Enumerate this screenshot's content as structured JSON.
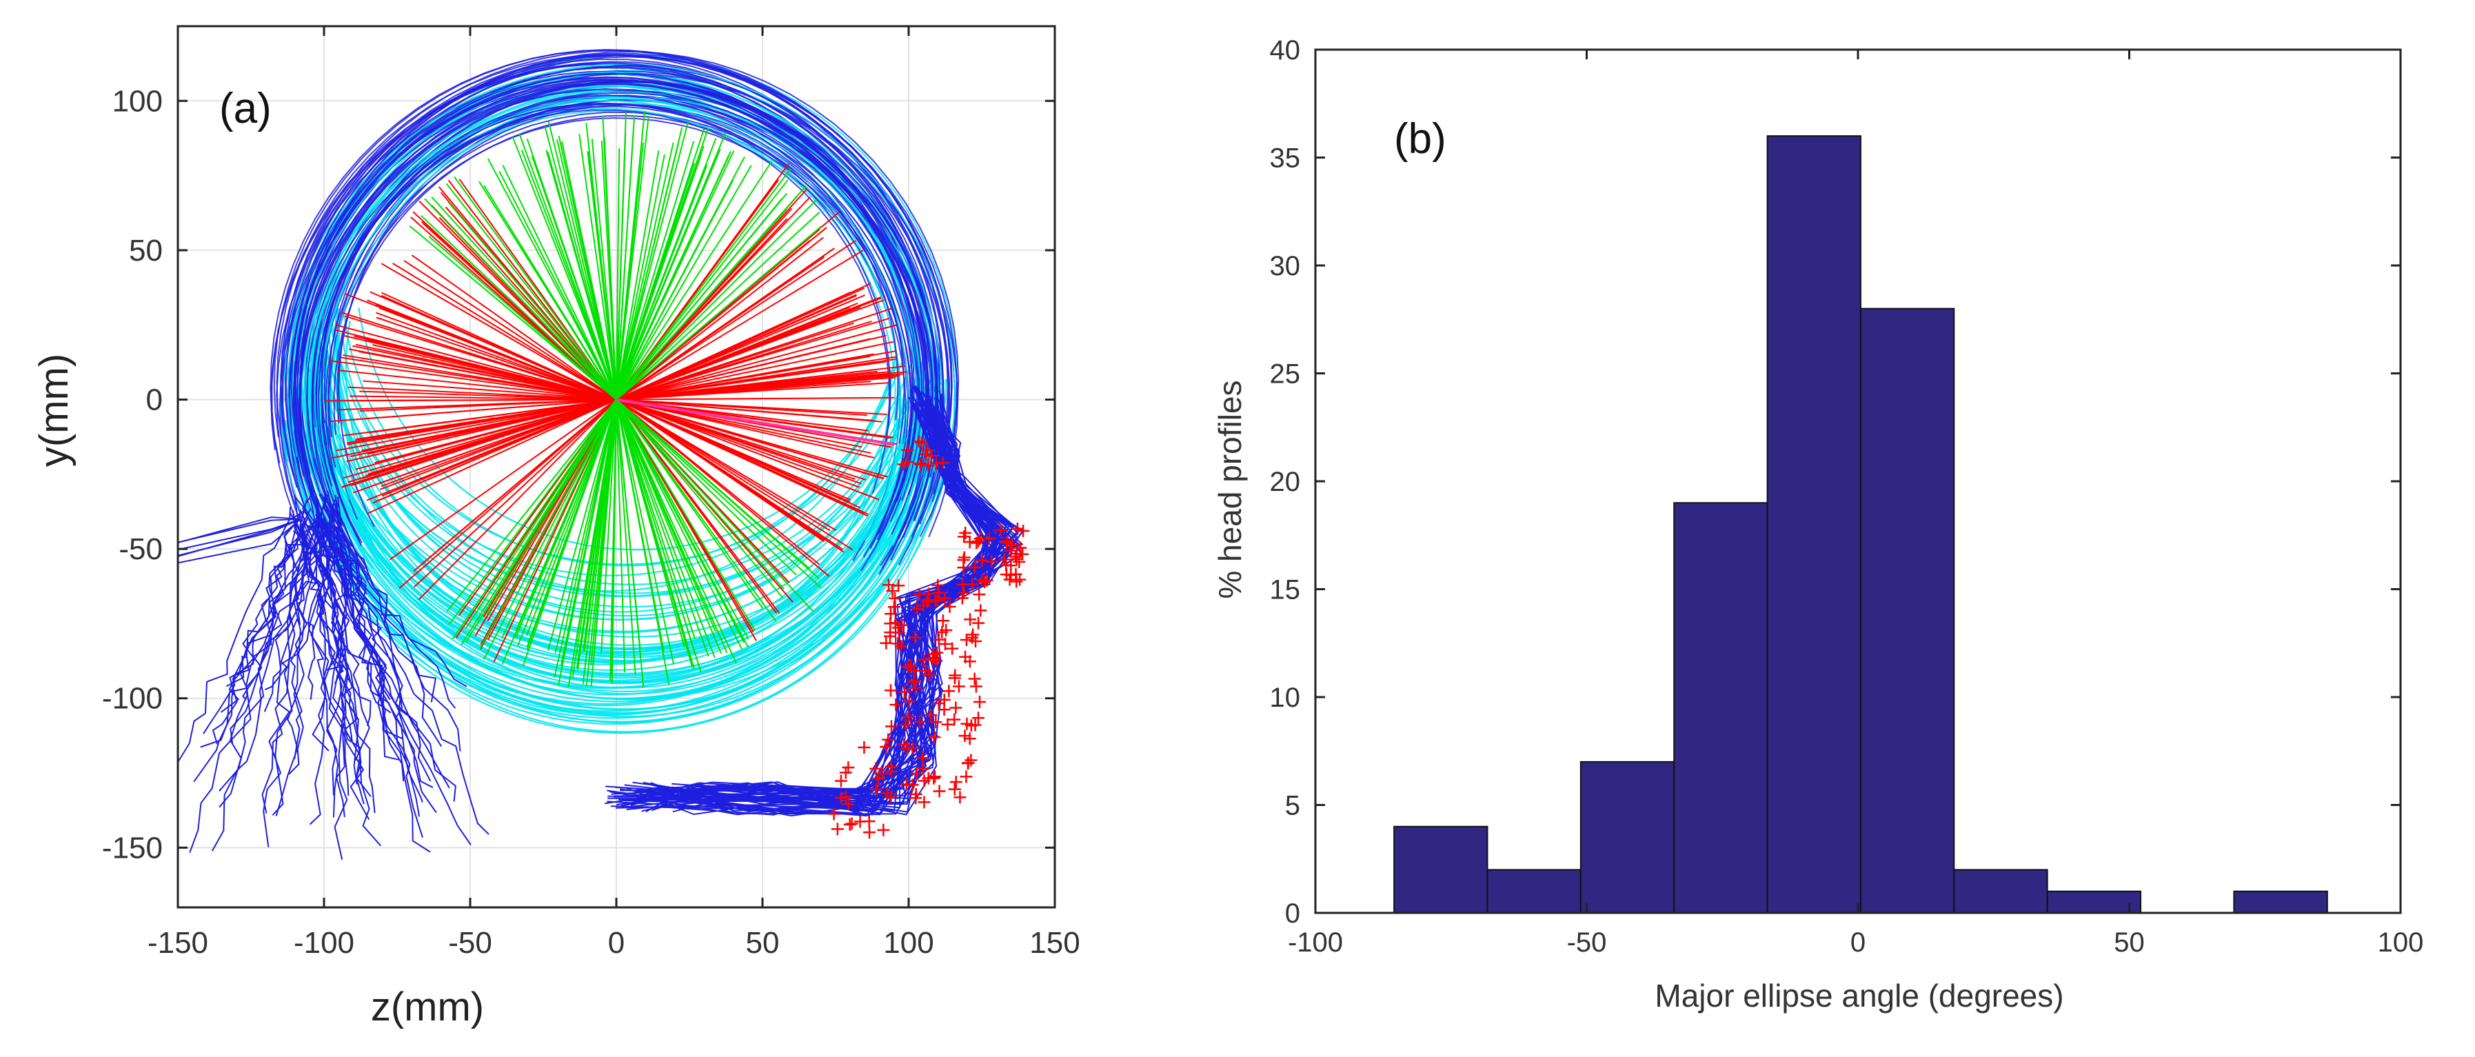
{
  "chart_data": [
    {
      "type": "scatter",
      "panel_label": "(a)",
      "title": "",
      "xlabel": "z(mm)",
      "ylabel": "y(mm)",
      "xlim": [
        -150,
        150
      ],
      "ylim": [
        -170,
        125
      ],
      "xticks": [
        -150,
        -100,
        -50,
        0,
        50,
        100,
        150
      ],
      "yticks": [
        -150,
        -100,
        -50,
        0,
        50,
        100
      ],
      "grid": true,
      "legend": "none",
      "colors": {
        "outline": "#1f1fe0",
        "back_outline": "#00e6f0",
        "ray_red": "#ff0000",
        "ray_green": "#00e000",
        "marker": "#ff0000",
        "highlight": "#ff33aa"
      },
      "series": [
        {
          "name": "head contours",
          "color": "#1f1fe0",
          "center": [
            0,
            0
          ],
          "radius_range": [
            100,
            115
          ]
        },
        {
          "name": "back contours",
          "color": "#00e6f0",
          "center": [
            0,
            0
          ],
          "radius_range": [
            95,
            113
          ]
        },
        {
          "name": "radial rays (red)",
          "color": "#ff0000",
          "angle_deg_ranges": [
            [
              -25,
              25
            ],
            [
              155,
              205
            ],
            [
              220,
              250
            ]
          ]
        },
        {
          "name": "radial rays (green)",
          "color": "#00e000",
          "angle_deg_ranges": [
            [
              60,
              120
            ],
            [
              245,
              300
            ]
          ]
        },
        {
          "name": "face markers",
          "color": "#ff0000",
          "x_range": [
            70,
            140
          ],
          "y_range": [
            -140,
            -15
          ]
        }
      ]
    },
    {
      "type": "bar",
      "panel_label": "(b)",
      "title": "",
      "xlabel": "Major ellipse angle (degrees)",
      "ylabel": "% head profiles",
      "xlim": [
        -100,
        100
      ],
      "ylim": [
        0,
        40
      ],
      "xticks": [
        -100,
        -50,
        0,
        50,
        100
      ],
      "yticks": [
        0,
        5,
        10,
        15,
        20,
        25,
        30,
        35,
        40
      ],
      "grid": false,
      "legend": "none",
      "bar_color": "#312782",
      "bin_edges": [
        -85.5,
        -68.3,
        -51.1,
        -33.9,
        -16.7,
        0.5,
        17.7,
        34.9,
        52.1,
        69.3,
        86.5
      ],
      "values": [
        4,
        2,
        7,
        19,
        36,
        28,
        2,
        1,
        0,
        1
      ]
    }
  ]
}
